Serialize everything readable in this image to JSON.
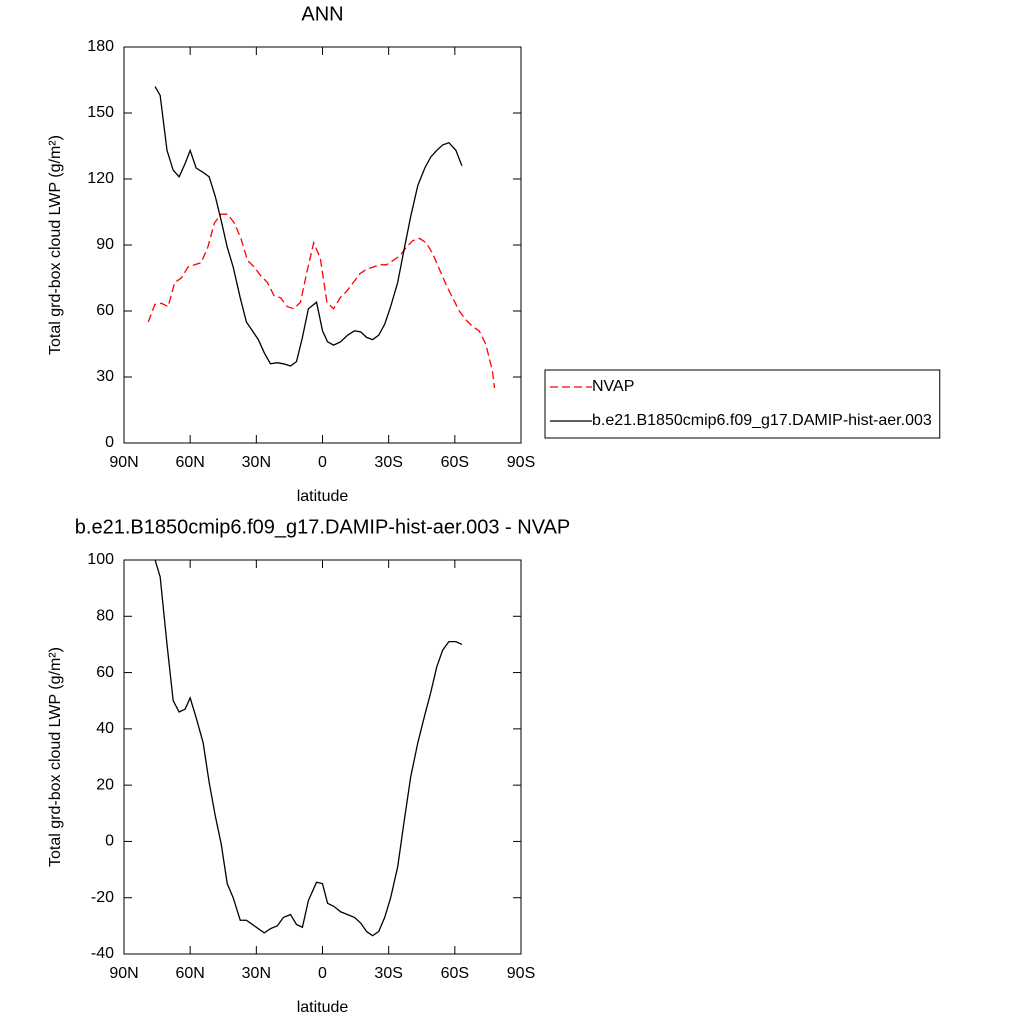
{
  "chart_data": [
    {
      "type": "line",
      "title": "ANN",
      "xlabel": "latitude",
      "ylabel": "Total grd-box cloud LWP (g/m²)",
      "xlim": [
        90,
        -90
      ],
      "xticks": [
        {
          "value": 90,
          "label": "90N"
        },
        {
          "value": 60,
          "label": "60N"
        },
        {
          "value": 30,
          "label": "30N"
        },
        0,
        {
          "value": -30,
          "label": "30S"
        },
        {
          "value": -60,
          "label": "60S"
        },
        {
          "value": -90,
          "label": "90S"
        }
      ],
      "ylim": [
        0,
        180
      ],
      "yticks": [
        0,
        30,
        60,
        90,
        120,
        150,
        180
      ],
      "legend": "right",
      "series": [
        {
          "name": "NVAP",
          "color": "#ff0000",
          "linestyle": "dashed",
          "x": [
            79,
            76,
            73,
            70,
            67,
            64,
            61,
            58,
            55,
            52,
            49,
            46,
            43,
            40,
            37,
            34,
            31,
            28,
            25,
            22,
            19,
            16,
            13,
            10,
            7,
            4,
            1,
            -2,
            -5,
            -8,
            -11,
            -14,
            -17,
            -20,
            -23,
            -26,
            -29,
            -32,
            -35,
            -38,
            -41,
            -44,
            -47,
            -50,
            -53,
            -56,
            -59,
            -62,
            -65,
            -68,
            -71,
            -74,
            -77,
            -78
          ],
          "values": [
            55,
            63,
            63.5,
            62,
            73,
            75,
            80,
            81,
            82,
            89,
            100,
            104,
            104,
            100,
            93,
            83,
            80,
            76,
            73,
            67,
            66,
            62,
            61,
            64,
            78,
            91,
            84,
            64,
            61,
            66,
            69,
            73,
            77,
            79,
            80,
            81,
            81,
            83,
            85,
            89,
            92,
            93,
            91,
            86,
            79,
            72,
            66,
            60,
            56,
            53,
            51,
            45,
            33,
            25
          ]
        },
        {
          "name": "b.e21.B1850cmip6.f09_g17.DAMIP-hist-aer.003",
          "color": "#000000",
          "linestyle": "solid",
          "x": [
            75.9,
            73.6,
            70.5,
            67.7,
            65.0,
            62.3,
            60.0,
            57.3,
            54.1,
            51.4,
            48.6,
            45.9,
            43.2,
            40.5,
            37.3,
            34.5,
            31.8,
            29.1,
            26.4,
            23.6,
            20.5,
            17.7,
            14.5,
            11.8,
            9.1,
            6.4,
            2.7,
            0,
            -2.3,
            -5,
            -8.2,
            -11.4,
            -14.5,
            -17.3,
            -20,
            -22.7,
            -25.5,
            -28.2,
            -30.9,
            -34.1,
            -36.8,
            -40,
            -43.2,
            -46.4,
            -49.1,
            -51.8,
            -54.5,
            -57.3,
            -60.5,
            -63.2
          ],
          "values": [
            162,
            158,
            133,
            124,
            121,
            127,
            133,
            125,
            123,
            121,
            112,
            101,
            89,
            80,
            66,
            55,
            51,
            47,
            41,
            36,
            36.5,
            36,
            35,
            37,
            48,
            61,
            64,
            51,
            46,
            44.5,
            46,
            49,
            51,
            50.5,
            48,
            47,
            49,
            54,
            62,
            73,
            87,
            103,
            117,
            125,
            130,
            133,
            135.5,
            136.5,
            133,
            126
          ]
        }
      ]
    },
    {
      "type": "line",
      "title": "b.e21.B1850cmip6.f09_g17.DAMIP-hist-aer.003 - NVAP",
      "xlabel": "latitude",
      "ylabel": "Total grd-box cloud LWP (g/m²)",
      "xlim": [
        90,
        -90
      ],
      "xticks": [
        {
          "value": 90,
          "label": "90N"
        },
        {
          "value": 60,
          "label": "60N"
        },
        {
          "value": 30,
          "label": "30N"
        },
        0,
        {
          "value": -30,
          "label": "30S"
        },
        {
          "value": -60,
          "label": "60S"
        },
        {
          "value": -90,
          "label": "90S"
        }
      ],
      "ylim": [
        -40,
        100
      ],
      "yticks": [
        -40,
        -20,
        0,
        20,
        40,
        60,
        80,
        100
      ],
      "color": "#000000",
      "x": [
        75.9,
        73.6,
        70.5,
        67.7,
        65.0,
        62.3,
        60.0,
        57.3,
        54.1,
        51.4,
        48.6,
        45.9,
        43.2,
        40.5,
        37.3,
        34.5,
        31.8,
        29.1,
        26.4,
        23.6,
        20.5,
        17.7,
        14.5,
        11.8,
        9.1,
        6.4,
        2.7,
        0,
        -2.3,
        -5,
        -8.2,
        -11.4,
        -14.5,
        -17.3,
        -20,
        -22.7,
        -25.5,
        -28.2,
        -30.9,
        -34.1,
        -36.8,
        -40,
        -43.2,
        -46.4,
        -49.1,
        -51.8,
        -54.5,
        -57.3,
        -60.5,
        -63.2
      ],
      "values": [
        100,
        94,
        70,
        50,
        46,
        47,
        51,
        44,
        35,
        21,
        9,
        -1,
        -15,
        -20,
        -28,
        -28,
        -29.5,
        -31,
        -32.5,
        -31,
        -30,
        -27,
        -26,
        -29.5,
        -30.5,
        -21,
        -14.5,
        -15,
        -22,
        -23,
        -25,
        -26,
        -27,
        -29,
        -32,
        -33.5,
        -32,
        -27,
        -20,
        -9,
        6,
        23,
        35,
        45,
        53,
        62,
        68,
        71,
        71,
        70
      ]
    }
  ]
}
